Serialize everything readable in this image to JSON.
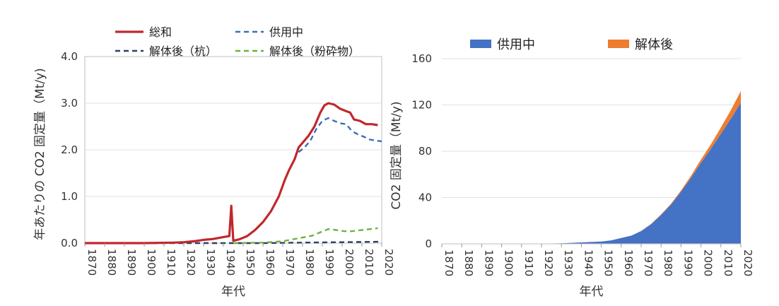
{
  "chart_data": [
    {
      "type": "line",
      "xlabel": "年代",
      "ylabel": "年あたりの CO2 固定量（Mt/y)",
      "xlim": [
        1870,
        2020
      ],
      "ylim": [
        0,
        4
      ],
      "xticks": [
        "1870",
        "1880",
        "1890",
        "1900",
        "1910",
        "1920",
        "1930",
        "1940",
        "1950",
        "1960",
        "1970",
        "1980",
        "1990",
        "2000",
        "2010",
        "2020"
      ],
      "yticks": [
        "0.0",
        "1.0",
        "2.0",
        "3.0",
        "4.0"
      ],
      "series": [
        {
          "name": "総和",
          "color": "#c0282d",
          "style": "solid",
          "points": [
            [
              1870,
              0.0
            ],
            [
              1900,
              0.0
            ],
            [
              1915,
              0.01
            ],
            [
              1920,
              0.02
            ],
            [
              1925,
              0.04
            ],
            [
              1930,
              0.07
            ],
            [
              1935,
              0.09
            ],
            [
              1940,
              0.13
            ],
            [
              1943,
              0.15
            ],
            [
              1944,
              0.8
            ],
            [
              1945,
              0.05
            ],
            [
              1948,
              0.08
            ],
            [
              1952,
              0.15
            ],
            [
              1956,
              0.28
            ],
            [
              1960,
              0.45
            ],
            [
              1964,
              0.68
            ],
            [
              1968,
              1.0
            ],
            [
              1971,
              1.35
            ],
            [
              1973,
              1.55
            ],
            [
              1976,
              1.8
            ],
            [
              1978,
              2.05
            ],
            [
              1980,
              2.15
            ],
            [
              1983,
              2.3
            ],
            [
              1986,
              2.5
            ],
            [
              1989,
              2.8
            ],
            [
              1991,
              2.95
            ],
            [
              1993,
              3.0
            ],
            [
              1996,
              2.97
            ],
            [
              1999,
              2.88
            ],
            [
              2002,
              2.83
            ],
            [
              2004,
              2.8
            ],
            [
              2006,
              2.65
            ],
            [
              2009,
              2.62
            ],
            [
              2012,
              2.55
            ],
            [
              2015,
              2.55
            ],
            [
              2018,
              2.53
            ]
          ]
        },
        {
          "name": "供用中",
          "color": "#3b6fb6",
          "style": "dashed",
          "points": [
            [
              1978,
              1.95
            ],
            [
              1981,
              2.05
            ],
            [
              1984,
              2.2
            ],
            [
              1987,
              2.45
            ],
            [
              1990,
              2.62
            ],
            [
              1993,
              2.68
            ],
            [
              1996,
              2.62
            ],
            [
              1999,
              2.57
            ],
            [
              2002,
              2.55
            ],
            [
              2005,
              2.4
            ],
            [
              2008,
              2.33
            ],
            [
              2011,
              2.28
            ],
            [
              2014,
              2.22
            ],
            [
              2017,
              2.2
            ],
            [
              2020,
              2.18
            ]
          ]
        },
        {
          "name": "解体後（杭）",
          "color": "#2f3f63",
          "style": "dashed",
          "points": [
            [
              1870,
              0.0
            ],
            [
              1940,
              0.0
            ],
            [
              1960,
              0.0
            ],
            [
              1980,
              0.01
            ],
            [
              2000,
              0.02
            ],
            [
              2020,
              0.03
            ]
          ]
        },
        {
          "name": "解体後（粉砕物）",
          "color": "#6cb33f",
          "style": "dashed",
          "points": [
            [
              1945,
              0.0
            ],
            [
              1960,
              0.01
            ],
            [
              1970,
              0.04
            ],
            [
              1975,
              0.08
            ],
            [
              1980,
              0.12
            ],
            [
              1985,
              0.16
            ],
            [
              1990,
              0.25
            ],
            [
              1993,
              0.3
            ],
            [
              1997,
              0.28
            ],
            [
              2000,
              0.26
            ],
            [
              2003,
              0.25
            ],
            [
              2006,
              0.26
            ],
            [
              2010,
              0.28
            ],
            [
              2014,
              0.3
            ],
            [
              2018,
              0.32
            ]
          ]
        }
      ]
    },
    {
      "type": "area",
      "xlabel": "年代",
      "ylabel": "CO2 固定量（Mt/y)",
      "xlim": [
        1870,
        2020
      ],
      "ylim": [
        0,
        160
      ],
      "xticks": [
        "1870",
        "1880",
        "1890",
        "1900",
        "1910",
        "1920",
        "1930",
        "1940",
        "1950",
        "1960",
        "1970",
        "1980",
        "1990",
        "2000",
        "2010",
        "2020"
      ],
      "yticks": [
        "0",
        "40",
        "80",
        "120",
        "160"
      ],
      "x": [
        1870,
        1920,
        1930,
        1940,
        1950,
        1955,
        1960,
        1965,
        1970,
        1975,
        1980,
        1985,
        1990,
        1995,
        2000,
        2005,
        2010,
        2015,
        2020
      ],
      "series": [
        {
          "name": "供用中",
          "color": "#4472c4",
          "values": [
            0,
            0.2,
            0.4,
            1.2,
            2,
            3,
            5,
            7,
            11,
            17,
            25,
            34,
            45,
            57,
            70,
            82,
            95,
            108,
            122
          ]
        },
        {
          "name": "解体後",
          "color": "#ed7d31",
          "values": [
            0,
            0,
            0,
            0,
            0,
            0,
            0,
            0,
            0.1,
            0.2,
            0.4,
            0.7,
            1.1,
            1.8,
            2.8,
            4.0,
            5.5,
            7.5,
            10
          ]
        }
      ]
    }
  ]
}
